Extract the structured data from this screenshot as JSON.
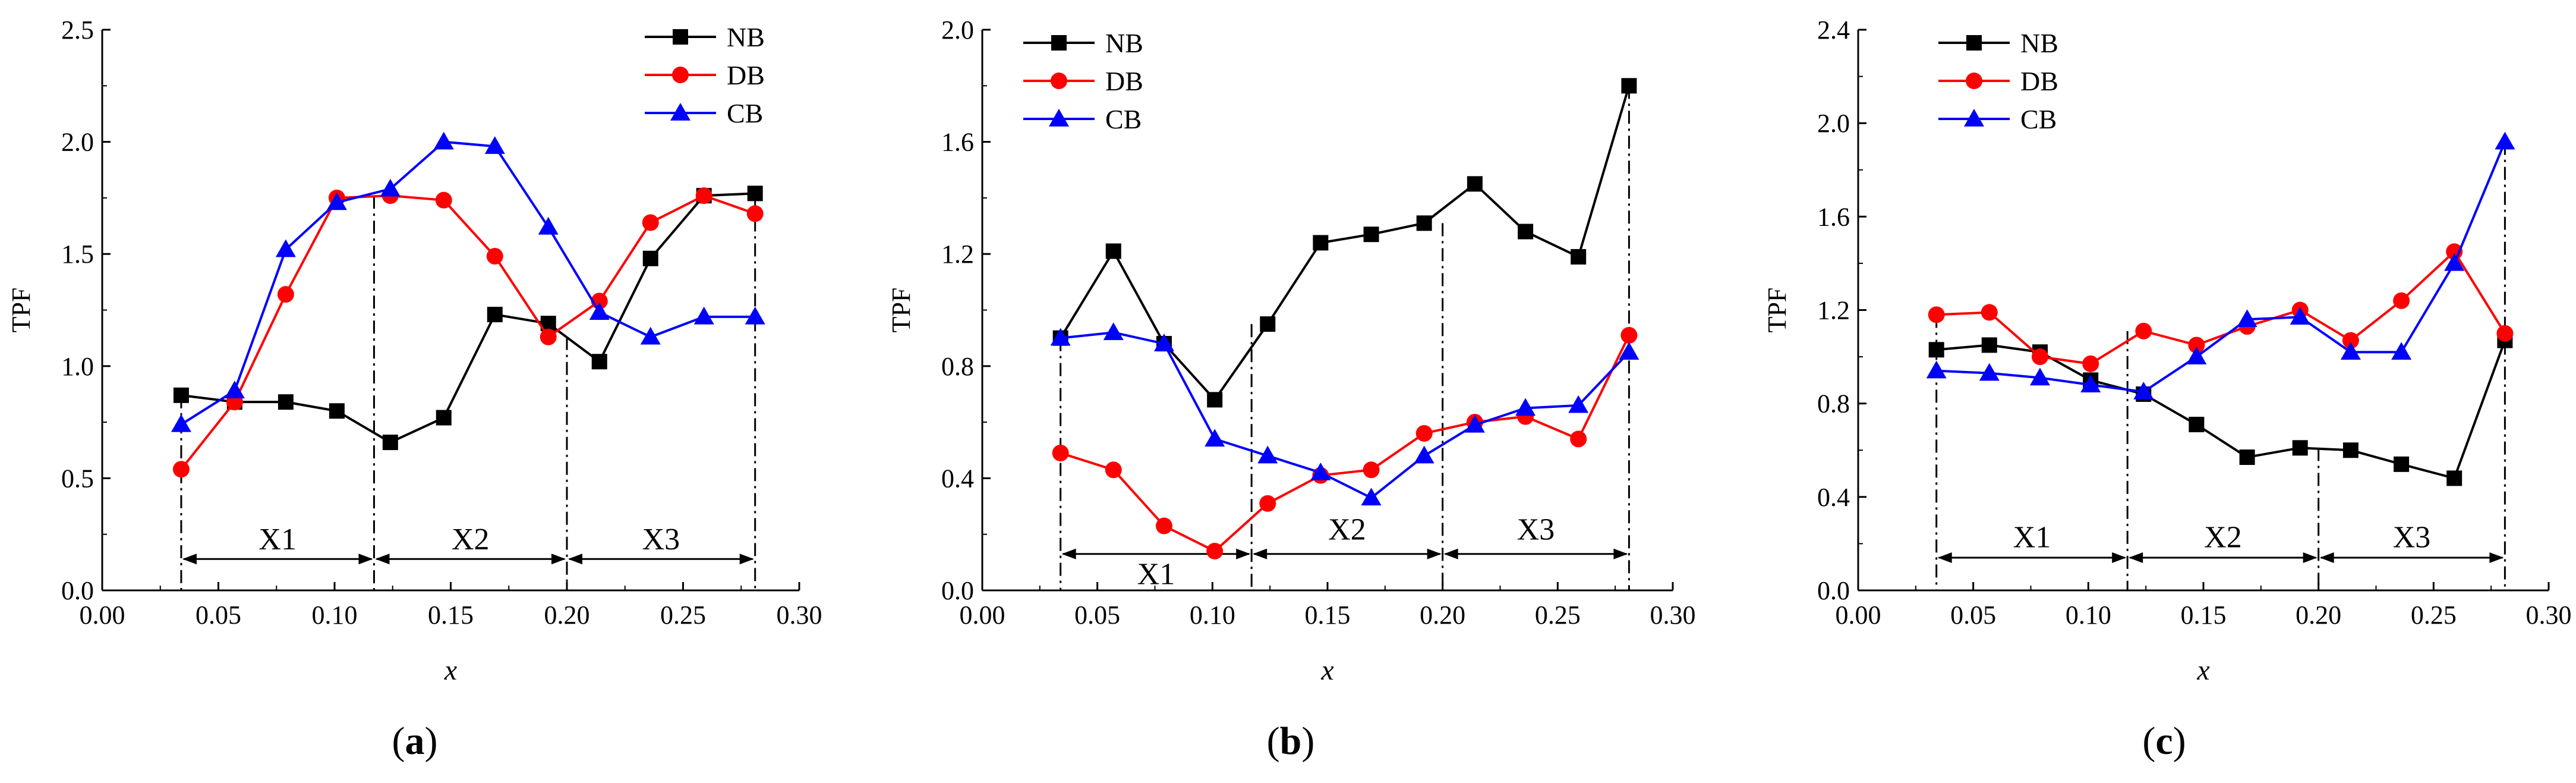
{
  "figure": {
    "panel_labels": [
      {
        "open": "(",
        "letter": "a",
        "close": ")"
      },
      {
        "open": "(",
        "letter": "b",
        "close": ")"
      },
      {
        "open": "(",
        "letter": "c",
        "close": ")"
      }
    ]
  },
  "chart_data": [
    {
      "type": "line",
      "title": "",
      "xlabel": "x",
      "ylabel": "TPF",
      "xlim": [
        0.0,
        0.3
      ],
      "ylim": [
        0.0,
        2.5
      ],
      "x_ticks": [
        "0.00",
        "0.05",
        "0.10",
        "0.15",
        "0.20",
        "0.25",
        "0.30"
      ],
      "y_ticks": [
        "0.0",
        "0.5",
        "1.0",
        "1.5",
        "2.0",
        "2.5"
      ],
      "x": [
        0.034,
        0.057,
        0.079,
        0.101,
        0.124,
        0.147,
        0.169,
        0.192,
        0.214,
        0.236,
        0.259,
        0.281
      ],
      "series": [
        {
          "name": "NB",
          "color": "#000000",
          "marker": "square",
          "values": [
            0.87,
            0.84,
            0.84,
            0.8,
            0.66,
            0.77,
            1.23,
            1.19,
            1.02,
            1.48,
            1.76,
            1.77
          ]
        },
        {
          "name": "DB",
          "color": "#ff0000",
          "marker": "circle",
          "values": [
            0.54,
            0.84,
            1.32,
            1.75,
            1.76,
            1.74,
            1.49,
            1.13,
            1.29,
            1.64,
            1.76,
            1.68
          ]
        },
        {
          "name": "CB",
          "color": "#0000ff",
          "marker": "triangle",
          "values": [
            0.74,
            0.89,
            1.52,
            1.73,
            1.79,
            2.0,
            1.98,
            1.62,
            1.24,
            1.13,
            1.22,
            1.22
          ]
        }
      ],
      "boundaries": [
        0.034,
        0.117,
        0.2,
        0.281
      ],
      "boundary_top_index": [
        0,
        1,
        1,
        0
      ],
      "arrow_y": 0.14,
      "segments": [
        {
          "label": "X1",
          "label_y": 0.23
        },
        {
          "label": "X2",
          "label_y": 0.23
        },
        {
          "label": "X3",
          "label_y": 0.23
        }
      ],
      "legend": "top-right"
    },
    {
      "type": "line",
      "title": "",
      "xlabel": "x",
      "ylabel": "TPF",
      "xlim": [
        0.0,
        0.3
      ],
      "ylim": [
        0.0,
        2.0
      ],
      "x_ticks": [
        "0.00",
        "0.05",
        "0.10",
        "0.15",
        "0.20",
        "0.25",
        "0.30"
      ],
      "y_ticks": [
        "0.0",
        "0.4",
        "0.8",
        "1.2",
        "1.6",
        "2.0"
      ],
      "x": [
        0.034,
        0.057,
        0.079,
        0.101,
        0.124,
        0.147,
        0.169,
        0.192,
        0.214,
        0.236,
        0.259,
        0.281
      ],
      "series": [
        {
          "name": "NB",
          "color": "#000000",
          "marker": "square",
          "values": [
            0.9,
            1.21,
            0.88,
            0.68,
            0.95,
            1.24,
            1.27,
            1.31,
            1.45,
            1.28,
            1.19,
            1.8
          ]
        },
        {
          "name": "DB",
          "color": "#ff0000",
          "marker": "circle",
          "values": [
            0.49,
            0.43,
            0.23,
            0.14,
            0.31,
            0.41,
            0.43,
            0.56,
            0.6,
            0.62,
            0.54,
            0.91
          ]
        },
        {
          "name": "CB",
          "color": "#0000ff",
          "marker": "triangle",
          "values": [
            0.9,
            0.92,
            0.88,
            0.54,
            0.48,
            0.42,
            0.33,
            0.48,
            0.59,
            0.65,
            0.66,
            0.85
          ]
        }
      ],
      "boundaries": [
        0.034,
        0.117,
        0.2,
        0.281
      ],
      "boundary_top_index": [
        0,
        0,
        0,
        0
      ],
      "arrow_y": 0.13,
      "segments": [
        {
          "label": "X1",
          "label_y": 0.06
        },
        {
          "label": "X2",
          "label_y": 0.22
        },
        {
          "label": "X3",
          "label_y": 0.22
        }
      ],
      "legend": "top-left"
    },
    {
      "type": "line",
      "title": "",
      "xlabel": "x",
      "ylabel": "TPF",
      "xlim": [
        0.0,
        0.3
      ],
      "ylim": [
        0.0,
        2.4
      ],
      "x_ticks": [
        "0.00",
        "0.05",
        "0.10",
        "0.15",
        "0.20",
        "0.25",
        "0.30"
      ],
      "y_ticks": [
        "0.0",
        "0.4",
        "0.8",
        "1.2",
        "1.6",
        "2.0",
        "2.4"
      ],
      "x": [
        0.034,
        0.057,
        0.079,
        0.101,
        0.124,
        0.147,
        0.169,
        0.192,
        0.214,
        0.236,
        0.259,
        0.281
      ],
      "series": [
        {
          "name": "NB",
          "color": "#000000",
          "marker": "square",
          "values": [
            1.03,
            1.05,
            1.02,
            0.9,
            0.84,
            0.71,
            0.57,
            0.61,
            0.6,
            0.54,
            0.48,
            1.07
          ]
        },
        {
          "name": "DB",
          "color": "#ff0000",
          "marker": "circle",
          "values": [
            1.18,
            1.19,
            1.0,
            0.97,
            1.11,
            1.05,
            1.13,
            1.2,
            1.07,
            1.24,
            1.45,
            1.1
          ]
        },
        {
          "name": "CB",
          "color": "#0000ff",
          "marker": "triangle",
          "values": [
            0.94,
            0.93,
            0.91,
            0.88,
            0.85,
            1.0,
            1.16,
            1.17,
            1.02,
            1.02,
            1.4,
            1.92
          ]
        }
      ],
      "boundaries": [
        0.034,
        0.117,
        0.2,
        0.281
      ],
      "boundary_top_index": [
        1,
        1,
        0,
        2
      ],
      "arrow_y": 0.14,
      "segments": [
        {
          "label": "X1",
          "label_y": 0.23
        },
        {
          "label": "X2",
          "label_y": 0.23
        },
        {
          "label": "X3",
          "label_y": 0.23
        }
      ],
      "legend": "top-left"
    }
  ]
}
